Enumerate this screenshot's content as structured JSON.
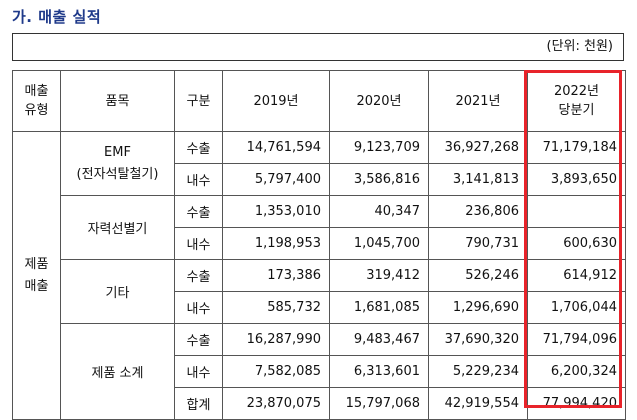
{
  "title": "가. 매출 실적",
  "unit": "(단위: 천원)",
  "header": {
    "sales_type_l1": "매출",
    "sales_type_l2": "유형",
    "item": "품목",
    "division": "구분",
    "y2019": "2019년",
    "y2020": "2020년",
    "y2021": "2021년",
    "y2022_l1": "2022년",
    "y2022_l2": "당분기"
  },
  "sales_type": {
    "l1": "제품",
    "l2": "매출"
  },
  "groups": [
    {
      "item_l1": "EMF",
      "item_l2": "(전자석탈철기)",
      "rows": [
        {
          "div": "수출",
          "v2019": "14,761,594",
          "v2020": "9,123,709",
          "v2021": "36,927,268",
          "v2022": "71,179,184"
        },
        {
          "div": "내수",
          "v2019": "5,797,400",
          "v2020": "3,586,816",
          "v2021": "3,141,813",
          "v2022": "3,893,650"
        }
      ]
    },
    {
      "item_l1": "자력선별기",
      "rows": [
        {
          "div": "수출",
          "v2019": "1,353,010",
          "v2020": "40,347",
          "v2021": "236,806",
          "v2022": ""
        },
        {
          "div": "내수",
          "v2019": "1,198,953",
          "v2020": "1,045,700",
          "v2021": "790,731",
          "v2022": "600,630"
        }
      ]
    },
    {
      "item_l1": "기타",
      "rows": [
        {
          "div": "수출",
          "v2019": "173,386",
          "v2020": "319,412",
          "v2021": "526,246",
          "v2022": "614,912"
        },
        {
          "div": "내수",
          "v2019": "585,732",
          "v2020": "1,681,085",
          "v2021": "1,296,690",
          "v2022": "1,706,044"
        }
      ]
    },
    {
      "item_l1": "제품 소계",
      "rows": [
        {
          "div": "수출",
          "v2019": "16,287,990",
          "v2020": "9,483,467",
          "v2021": "37,690,320",
          "v2022": "71,794,096"
        },
        {
          "div": "내수",
          "v2019": "7,582,085",
          "v2020": "6,313,601",
          "v2021": "5,229,234",
          "v2022": "6,200,324"
        },
        {
          "div": "합계",
          "v2019": "23,870,075",
          "v2020": "15,797,068",
          "v2021": "42,919,554",
          "v2022": "77,994,420"
        }
      ]
    }
  ],
  "colors": {
    "title": "#1f3a8a",
    "highlight": "#e8232a"
  }
}
